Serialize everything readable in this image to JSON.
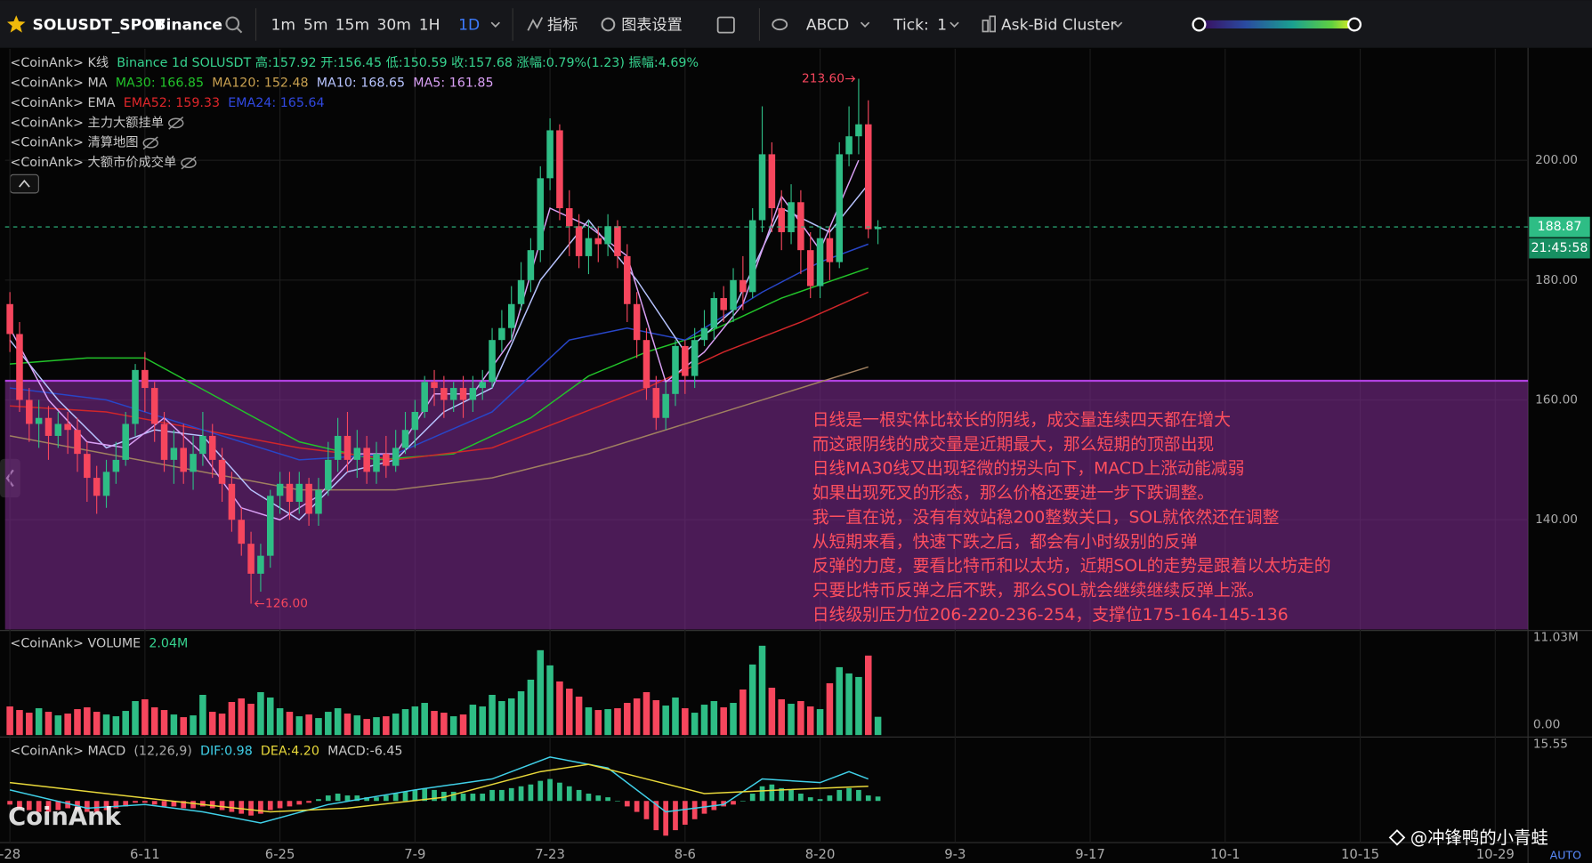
{
  "toolbar": {
    "symbol": "SOLUSDT_SPOT",
    "exchange": "Binance",
    "intervals": [
      "1m",
      "5m",
      "15m",
      "30m",
      "1H",
      "1D"
    ],
    "active_interval": 5,
    "indicators": "指标",
    "settings": "图表设置",
    "abcd": "ABCD",
    "tick_label": "Tick:",
    "tick_value": "1",
    "cluster": "Ask-Bid Cluster"
  },
  "chart_data": {
    "type": "candlestick",
    "info_label": "<CoinAnk> K线",
    "info": "Binance 1d SOLUSDT 高:157.92 开:156.45 低:150.59 收:157.68 涨幅:0.79%(1.23) 振幅:4.69%",
    "overlays": [
      {
        "label": "<CoinAnk> MA",
        "items": [
          {
            "text": "MA30: 166.85",
            "color": "#22c32a"
          },
          {
            "text": "MA120: 152.48",
            "color": "#c8a050"
          },
          {
            "text": "MA10: 168.65",
            "color": "#b8c4ff"
          },
          {
            "text": "MA5: 161.85",
            "color": "#d9a0f5"
          }
        ]
      },
      {
        "label": "<CoinAnk> EMA",
        "items": [
          {
            "text": "EMA52: 159.33",
            "color": "#e0262a"
          },
          {
            "text": "EMA24: 165.64",
            "color": "#3048e0"
          }
        ]
      },
      {
        "label": "<CoinAnk> 主力大额挂单",
        "hidden": true
      },
      {
        "label": "<CoinAnk> 清算地图",
        "hidden": true
      },
      {
        "label": "<CoinAnk> 大额市价成交单",
        "hidden": true
      }
    ],
    "up_color": "#2ebd85",
    "down_color": "#f6465d",
    "grid": true,
    "xlim": [
      -0.5,
      157.4
    ],
    "xticks": [
      {
        "value": 0,
        "label": "-28"
      },
      {
        "value": 14,
        "label": "6-11"
      },
      {
        "value": 28,
        "label": "6-25"
      },
      {
        "value": 42,
        "label": "7-9"
      },
      {
        "value": 56,
        "label": "7-23"
      },
      {
        "value": 70,
        "label": "8-6"
      },
      {
        "value": 84,
        "label": "8-20"
      },
      {
        "value": 98,
        "label": "9-3"
      },
      {
        "value": 112,
        "label": "9-17"
      },
      {
        "value": 126,
        "label": "10-1"
      },
      {
        "value": 140,
        "label": "10-15"
      },
      {
        "value": 154,
        "label": "10-29"
      }
    ],
    "ylim": [
      121.7,
      218.6
    ],
    "yticks": [
      {
        "value": 140,
        "label": "140.00"
      },
      {
        "value": 160,
        "label": "160.00"
      },
      {
        "value": 180,
        "label": "180.00"
      },
      {
        "value": 200,
        "label": "200.00"
      }
    ],
    "open": [
      176,
      171,
      160,
      156,
      157,
      154,
      156,
      155,
      151,
      147,
      144,
      148,
      150,
      156,
      165,
      162,
      156,
      150,
      152,
      148,
      151,
      154,
      150,
      146,
      140,
      136,
      131,
      134,
      144,
      146,
      143,
      146,
      141,
      145,
      150,
      154,
      150,
      152,
      148,
      151,
      149,
      152,
      155,
      158,
      163,
      162,
      160,
      162,
      160,
      162,
      163,
      170,
      172,
      176,
      180,
      185,
      197,
      205,
      192,
      189,
      184,
      187,
      186,
      189,
      184,
      176,
      170,
      162,
      157,
      161,
      169,
      164,
      170,
      172,
      177,
      175,
      180,
      178,
      190,
      201,
      192,
      188,
      193,
      185,
      179,
      187,
      183,
      201,
      204,
      206,
      188.5
    ],
    "close": [
      171,
      160,
      156,
      157,
      154,
      156,
      155,
      151,
      147,
      144,
      148,
      150,
      156,
      165,
      162,
      156,
      150,
      152,
      148,
      151,
      154,
      150,
      146,
      140,
      136,
      131,
      134,
      144,
      146,
      143,
      146,
      141,
      145,
      150,
      154,
      150,
      152,
      148,
      151,
      149,
      152,
      155,
      158,
      163,
      162,
      160,
      162,
      160,
      162,
      163,
      170,
      172,
      176,
      180,
      185,
      197,
      205,
      192,
      189,
      184,
      187,
      186,
      189,
      184,
      176,
      170,
      162,
      157,
      161,
      169,
      164,
      170,
      172,
      177,
      175,
      180,
      178,
      190,
      201,
      192,
      188,
      193,
      185,
      179,
      187,
      183,
      201,
      204,
      206,
      188.5,
      188.87
    ],
    "high": [
      178,
      173,
      162,
      160,
      159,
      158,
      158,
      157,
      153,
      149,
      150,
      153,
      158,
      166,
      168,
      163,
      158,
      155,
      156,
      154,
      158,
      156,
      152,
      148,
      142,
      138,
      136,
      145,
      148,
      148,
      148,
      147,
      147,
      153,
      157,
      158,
      155,
      154,
      153,
      154,
      155,
      158,
      160,
      164,
      165,
      164,
      163,
      164,
      164,
      165,
      172,
      175,
      179,
      183,
      187,
      199,
      207,
      206,
      195,
      191,
      190,
      189,
      191,
      190,
      186,
      178,
      172,
      164,
      163,
      170,
      170,
      172,
      175,
      178,
      179,
      182,
      184,
      192,
      209,
      203,
      195,
      196,
      195,
      188,
      189,
      189,
      203,
      209,
      213.6,
      210,
      190
    ],
    "low": [
      168,
      158,
      153,
      152,
      150,
      152,
      151,
      148,
      143,
      141,
      142,
      146,
      149,
      154,
      158,
      153,
      148,
      146,
      146,
      145,
      149,
      147,
      143,
      138,
      134,
      126,
      128,
      132,
      141,
      140,
      141,
      139,
      139,
      144,
      148,
      148,
      147,
      146,
      146,
      147,
      148,
      151,
      152,
      157,
      159,
      157,
      158,
      157,
      158,
      160,
      162,
      168,
      170,
      175,
      178,
      183,
      195,
      190,
      184,
      182,
      181,
      183,
      184,
      182,
      173,
      167,
      160,
      155,
      155,
      159,
      161,
      162,
      169,
      170,
      173,
      173,
      175,
      177,
      188,
      188,
      185,
      186,
      181,
      177,
      177,
      180,
      182,
      199,
      201,
      187,
      186
    ],
    "lines": [
      {
        "color": "#a08060",
        "x": [
          0,
          10,
          20,
          30,
          40,
          50,
          60,
          70,
          80,
          89
        ],
        "values": [
          154,
          151,
          148,
          145,
          145,
          147,
          151,
          156,
          161,
          165.5
        ]
      },
      {
        "color": "#22c32a",
        "x": [
          0,
          8,
          14,
          22,
          30,
          38,
          46,
          54,
          60,
          66,
          72,
          80,
          89
        ],
        "values": [
          166,
          167,
          167,
          160,
          153,
          150,
          151,
          157,
          164,
          168,
          171,
          177,
          182
        ]
      },
      {
        "color": "#d0262a",
        "x": [
          0,
          10,
          20,
          30,
          40,
          50,
          58,
          66,
          74,
          82,
          89
        ],
        "values": [
          159,
          158,
          155,
          152,
          150,
          152,
          157,
          162,
          168,
          173,
          178
        ]
      },
      {
        "color": "#2846c8",
        "x": [
          0,
          10,
          20,
          30,
          40,
          50,
          58,
          64,
          70,
          78,
          84,
          89
        ],
        "values": [
          162,
          160,
          155,
          150,
          151,
          158,
          170,
          172,
          170,
          178,
          183,
          186
        ]
      },
      {
        "color": "#b8c4ff",
        "x": [
          0,
          5,
          10,
          15,
          20,
          25,
          30,
          35,
          40,
          45,
          50,
          55,
          60,
          65,
          70,
          75,
          80,
          85,
          89
        ],
        "values": [
          170,
          160,
          152,
          155,
          154,
          145,
          140,
          148,
          150,
          158,
          162,
          180,
          190,
          180,
          168,
          175,
          192,
          188,
          196
        ]
      },
      {
        "color": "#d9a0f5",
        "x": [
          0,
          4,
          8,
          12,
          16,
          20,
          24,
          28,
          32,
          36,
          40,
          44,
          48,
          52,
          56,
          60,
          64,
          68,
          72,
          76,
          80,
          84,
          88
        ],
        "values": [
          172,
          160,
          153,
          152,
          157,
          151,
          142,
          140,
          144,
          151,
          151,
          161,
          161,
          170,
          192,
          189,
          184,
          163,
          168,
          176,
          194,
          185,
          200
        ]
      }
    ],
    "zone_top": 163.2,
    "zone_color": "#7a2a8c",
    "high_label": {
      "x": 88,
      "value": 213.6,
      "label": "213.60"
    },
    "low_label": {
      "x": 25,
      "value": 126,
      "label": "126.00"
    },
    "last_price": {
      "value": 188.87,
      "label": "188.87"
    },
    "countdown": "21:45:58",
    "note_lines": [
      "日线是一根实体比较长的阴线，成交量连续四天都在增大",
      "而这跟阴线的成交量是近期最大，那么短期的顶部出现",
      "日线MA30线又出现轻微的拐头向下，MACD上涨动能减弱",
      "如果出现死叉的形态，那么价格还要进一步下跌调整。",
      "我一直在说，没有有效站稳200整数关口，SOL就依然还在调整",
      "从短期来看，快速下跌之后，都会有小时级别的反弹",
      "反弹的力度，要看比特币和以太坊，近期SOL的走势是跟着以太坊走的",
      "只要比特币反弹之后不跌，那么SOL就会继续继续反弹上涨。",
      "日线级别压力位206-220-236-254，支撑位175-164-145-136"
    ],
    "volume": {
      "label": "<CoinAnk> VOLUME",
      "current": "2.04M",
      "ylim": [
        0,
        11.6
      ],
      "yticks": [
        {
          "value": 0,
          "label": "0.00"
        },
        {
          "value": 11.03,
          "label": "11.03M"
        }
      ],
      "values": [
        3.2,
        2.8,
        2.5,
        3.0,
        2.6,
        2.2,
        2.4,
        2.9,
        3.1,
        2.6,
        2.3,
        2.1,
        2.7,
        3.8,
        4.0,
        3.1,
        2.8,
        2.3,
        2.0,
        2.2,
        4.5,
        2.6,
        2.4,
        3.7,
        4.1,
        3.5,
        4.8,
        4.2,
        3.0,
        2.6,
        2.1,
        2.3,
        1.9,
        2.6,
        3.0,
        2.4,
        2.2,
        1.8,
        2.0,
        2.1,
        2.4,
        2.9,
        3.2,
        3.6,
        2.7,
        2.5,
        2.1,
        2.3,
        3.4,
        3.2,
        4.5,
        3.8,
        4.1,
        4.9,
        6.2,
        9.5,
        7.8,
        6.0,
        5.2,
        4.3,
        3.1,
        2.8,
        2.9,
        3.0,
        3.6,
        4.1,
        4.8,
        3.9,
        3.3,
        4.2,
        3.0,
        2.5,
        3.4,
        3.8,
        3.1,
        3.6,
        5.1,
        7.9,
        10.0,
        5.3,
        4.0,
        3.5,
        3.8,
        3.2,
        2.9,
        5.8,
        7.6,
        6.9,
        6.5,
        8.9,
        2.04
      ]
    },
    "macd": {
      "label": "<CoinAnk> MACD",
      "params": "(12,26,9)",
      "dif_text": "DIF:0.98",
      "dea_text": "DEA:4.20",
      "macd_text": "MACD:-6.45",
      "ylim": [
        -11.4,
        17.2
      ],
      "yticks": [
        {
          "value": 15.55,
          "label": "15.55"
        }
      ],
      "histogram": [
        -1,
        -2,
        -2.5,
        -3,
        -3,
        -2.5,
        -2,
        -2.5,
        -3,
        -3,
        -2.5,
        -2,
        -1.5,
        -0.5,
        -0.5,
        -1,
        -1.5,
        -1.5,
        -2,
        -2,
        -1.5,
        -2,
        -2.5,
        -3,
        -3.5,
        -4,
        -3.5,
        -2.5,
        -2,
        -1.5,
        -1,
        -0.5,
        0.5,
        1.5,
        2,
        1.5,
        1.5,
        1,
        1,
        1.5,
        2,
        2.5,
        3,
        3.5,
        3,
        2.5,
        2.5,
        2,
        2,
        2,
        3,
        3,
        3.5,
        4,
        4.5,
        5.5,
        6,
        5,
        4,
        3,
        2,
        1.5,
        1,
        0,
        -1.5,
        -3,
        -5,
        -8,
        -9.5,
        -8,
        -6.5,
        -5,
        -3.5,
        -2.5,
        -1.5,
        -1,
        0,
        2,
        4,
        4.5,
        3.5,
        3,
        2,
        1,
        0.5,
        1.5,
        3,
        3.5,
        3,
        1.5,
        1.2
      ],
      "dif": {
        "color": "#40d0e8",
        "x": [
          0,
          8,
          14,
          20,
          26,
          33,
          42,
          50,
          56,
          62,
          68,
          74,
          78,
          84,
          87,
          89
        ],
        "values": [
          3,
          -2,
          -1,
          -3,
          -6,
          -1,
          3,
          6,
          12,
          9,
          -3,
          -1,
          6,
          5,
          8,
          6
        ]
      },
      "dea": {
        "color": "#e8d83a",
        "x": [
          0,
          10,
          20,
          27,
          35,
          45,
          55,
          60,
          66,
          72,
          80,
          89
        ],
        "values": [
          5,
          2,
          -1,
          -3,
          -2,
          1,
          8,
          10,
          6,
          2,
          3,
          4
        ]
      }
    }
  },
  "footer": {
    "watermark": "CoinAnk",
    "credit": "@冲锋鸭的小青蛙",
    "auto": "AUTO"
  }
}
